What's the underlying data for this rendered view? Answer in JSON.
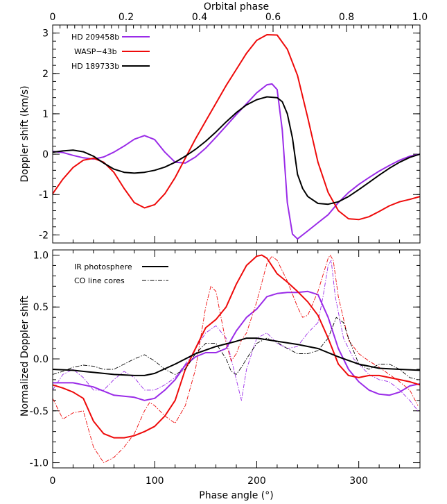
{
  "colors": {
    "hd209458b": "#9a2be8",
    "wasp43b": "#ee0a0a",
    "hd189733b": "#000000"
  },
  "chart_data": [
    {
      "type": "line",
      "top_axis": {
        "label": "Orbital phase",
        "ticks": [
          "0",
          "0.2",
          "0.4",
          "0.6",
          "0.8",
          "1.0"
        ]
      },
      "xlim": [
        0,
        360
      ],
      "ylabel": "Doppler shift (km/s)",
      "ylim": [
        -2.2,
        3.2
      ],
      "yticks": [
        "-2",
        "-1",
        "0",
        "1",
        "2",
        "3"
      ],
      "legend": {
        "placement": "top-left",
        "entries": [
          "HD 209458b",
          "WASP−43b",
          "HD 189733b"
        ]
      },
      "series": [
        {
          "name": "HD 209458b",
          "color": "#9a2be8",
          "style": "solid",
          "x": [
            0,
            10,
            20,
            30,
            40,
            50,
            60,
            70,
            80,
            90,
            100,
            110,
            120,
            130,
            140,
            150,
            160,
            170,
            180,
            190,
            200,
            210,
            215,
            220,
            225,
            230,
            235,
            240,
            245,
            250,
            260,
            270,
            280,
            290,
            300,
            310,
            320,
            330,
            340,
            350,
            360
          ],
          "y": [
            0.07,
            0.04,
            -0.03,
            -0.09,
            -0.12,
            -0.07,
            0.05,
            0.2,
            0.37,
            0.46,
            0.36,
            0.05,
            -0.2,
            -0.22,
            -0.07,
            0.15,
            0.42,
            0.7,
            0.98,
            1.25,
            1.52,
            1.72,
            1.74,
            1.6,
            0.6,
            -1.2,
            -1.98,
            -2.1,
            -2.0,
            -1.9,
            -1.7,
            -1.5,
            -1.2,
            -0.95,
            -0.75,
            -0.58,
            -0.42,
            -0.28,
            -0.15,
            -0.05,
            0.0
          ]
        },
        {
          "name": "WASP−43b",
          "color": "#ee0a0a",
          "style": "solid",
          "x": [
            0,
            10,
            20,
            30,
            40,
            50,
            60,
            70,
            80,
            90,
            100,
            110,
            120,
            130,
            140,
            150,
            160,
            170,
            180,
            190,
            200,
            210,
            220,
            230,
            240,
            250,
            260,
            270,
            280,
            290,
            300,
            310,
            320,
            330,
            340,
            350,
            360
          ],
          "y": [
            -0.98,
            -0.62,
            -0.33,
            -0.15,
            -0.1,
            -0.2,
            -0.45,
            -0.85,
            -1.2,
            -1.33,
            -1.25,
            -0.98,
            -0.58,
            -0.1,
            0.38,
            0.82,
            1.26,
            1.7,
            2.1,
            2.5,
            2.82,
            2.96,
            2.95,
            2.6,
            1.95,
            0.9,
            -0.2,
            -0.95,
            -1.4,
            -1.6,
            -1.62,
            -1.55,
            -1.42,
            -1.28,
            -1.18,
            -1.12,
            -1.05
          ]
        },
        {
          "name": "HD 189733b",
          "color": "#000000",
          "style": "solid",
          "x": [
            0,
            10,
            20,
            30,
            40,
            50,
            60,
            70,
            80,
            90,
            100,
            110,
            120,
            130,
            140,
            150,
            160,
            170,
            180,
            190,
            200,
            210,
            220,
            225,
            230,
            235,
            240,
            245,
            250,
            260,
            270,
            280,
            290,
            300,
            310,
            320,
            330,
            340,
            350,
            360
          ],
          "y": [
            0.05,
            0.08,
            0.1,
            0.06,
            -0.05,
            -0.22,
            -0.37,
            -0.45,
            -0.47,
            -0.45,
            -0.4,
            -0.32,
            -0.2,
            -0.05,
            0.12,
            0.32,
            0.55,
            0.8,
            1.03,
            1.22,
            1.35,
            1.42,
            1.4,
            1.3,
            1.0,
            0.4,
            -0.5,
            -0.85,
            -1.05,
            -1.22,
            -1.24,
            -1.18,
            -1.05,
            -0.88,
            -0.7,
            -0.52,
            -0.35,
            -0.2,
            -0.08,
            0.0
          ]
        }
      ]
    },
    {
      "type": "line",
      "xlabel": "Phase angle (°)",
      "xlim": [
        0,
        360
      ],
      "xticks": [
        "0",
        "100",
        "200",
        "300"
      ],
      "ylabel": "Normalized Doppler shift",
      "ylim": [
        -1.05,
        1.05
      ],
      "yticks": [
        "-1.0",
        "-0.5",
        "0.0",
        "0.5",
        "1.0"
      ],
      "legend": {
        "placement": "top-left",
        "entries": [
          "IR photosphere",
          "CO line cores"
        ]
      },
      "series": [
        {
          "name": "IR photosphere",
          "group": "HD 209458b",
          "color": "#9a2be8",
          "style": "solid",
          "x": [
            0,
            20,
            40,
            60,
            70,
            80,
            90,
            100,
            110,
            120,
            130,
            140,
            150,
            160,
            170,
            180,
            190,
            200,
            210,
            220,
            230,
            240,
            250,
            260,
            270,
            280,
            290,
            300,
            310,
            320,
            330,
            340,
            350,
            360
          ],
          "y": [
            -0.23,
            -0.23,
            -0.27,
            -0.35,
            -0.36,
            -0.37,
            -0.4,
            -0.38,
            -0.3,
            -0.2,
            -0.06,
            0.02,
            0.06,
            0.06,
            0.1,
            0.27,
            0.4,
            0.48,
            0.6,
            0.63,
            0.64,
            0.64,
            0.65,
            0.62,
            0.4,
            0.1,
            -0.1,
            -0.22,
            -0.3,
            -0.34,
            -0.35,
            -0.32,
            -0.26,
            -0.24
          ]
        },
        {
          "name": "CO line cores",
          "group": "HD 209458b",
          "color": "#9a2be8",
          "style": "dashdot",
          "x": [
            0,
            10,
            20,
            30,
            40,
            50,
            60,
            70,
            80,
            90,
            100,
            110,
            120,
            130,
            140,
            150,
            160,
            170,
            180,
            185,
            190,
            200,
            210,
            220,
            230,
            240,
            250,
            260,
            265,
            270,
            273,
            277,
            285,
            295,
            310,
            320,
            330,
            340,
            350,
            358
          ],
          "y": [
            -0.3,
            -0.15,
            -0.1,
            -0.18,
            -0.3,
            -0.3,
            -0.2,
            -0.12,
            -0.18,
            -0.3,
            -0.3,
            -0.25,
            -0.18,
            -0.05,
            0.1,
            0.25,
            0.32,
            0.2,
            -0.2,
            -0.4,
            -0.1,
            0.2,
            0.25,
            0.15,
            0.1,
            0.12,
            0.25,
            0.35,
            0.6,
            0.9,
            0.95,
            0.6,
            0.2,
            0.0,
            -0.15,
            -0.2,
            -0.22,
            -0.3,
            -0.4,
            -0.5
          ]
        },
        {
          "name": "IR photosphere",
          "group": "WASP−43b",
          "color": "#ee0a0a",
          "style": "solid",
          "x": [
            0,
            10,
            20,
            30,
            40,
            50,
            60,
            70,
            80,
            90,
            100,
            110,
            120,
            130,
            140,
            150,
            160,
            170,
            180,
            190,
            200,
            205,
            210,
            220,
            230,
            240,
            250,
            260,
            270,
            280,
            290,
            300,
            310,
            320,
            330,
            340,
            350,
            360
          ],
          "y": [
            -0.25,
            -0.28,
            -0.32,
            -0.38,
            -0.6,
            -0.72,
            -0.76,
            -0.76,
            -0.74,
            -0.7,
            -0.65,
            -0.55,
            -0.4,
            -0.1,
            0.1,
            0.3,
            0.38,
            0.5,
            0.72,
            0.9,
            0.99,
            1.0,
            0.97,
            0.82,
            0.74,
            0.65,
            0.55,
            0.42,
            0.2,
            -0.05,
            -0.16,
            -0.18,
            -0.16,
            -0.16,
            -0.18,
            -0.2,
            -0.22,
            -0.25
          ]
        },
        {
          "name": "CO line cores",
          "group": "WASP−43b",
          "color": "#ee0a0a",
          "style": "dashdot",
          "x": [
            0,
            10,
            20,
            30,
            40,
            50,
            60,
            70,
            80,
            90,
            95,
            100,
            110,
            120,
            130,
            140,
            150,
            155,
            160,
            165,
            170,
            175,
            180,
            185,
            190,
            200,
            210,
            215,
            220,
            230,
            240,
            245,
            250,
            260,
            270,
            272,
            275,
            280,
            290,
            300,
            310,
            320,
            330,
            340,
            350,
            358
          ],
          "y": [
            -0.38,
            -0.58,
            -0.52,
            -0.5,
            -0.85,
            -1.0,
            -0.95,
            -0.85,
            -0.72,
            -0.5,
            -0.42,
            -0.45,
            -0.55,
            -0.62,
            -0.45,
            -0.1,
            0.5,
            0.7,
            0.65,
            0.4,
            0.15,
            -0.02,
            0.05,
            0.18,
            0.25,
            0.55,
            0.92,
            0.99,
            0.95,
            0.75,
            0.5,
            0.4,
            0.42,
            0.65,
            0.97,
            1.0,
            0.95,
            0.6,
            0.18,
            0.05,
            -0.02,
            -0.08,
            -0.15,
            -0.22,
            -0.3,
            -0.45
          ]
        },
        {
          "name": "IR photosphere",
          "group": "HD 189733b",
          "color": "#000000",
          "style": "solid",
          "x": [
            0,
            20,
            40,
            60,
            80,
            90,
            100,
            120,
            140,
            160,
            180,
            190,
            200,
            220,
            240,
            260,
            280,
            300,
            320,
            340,
            360
          ],
          "y": [
            -0.1,
            -0.11,
            -0.13,
            -0.15,
            -0.16,
            -0.16,
            -0.14,
            -0.05,
            0.05,
            0.12,
            0.17,
            0.2,
            0.2,
            0.17,
            0.14,
            0.1,
            0.02,
            -0.05,
            -0.09,
            -0.1,
            -0.11
          ]
        },
        {
          "name": "CO line cores",
          "group": "HD 189733b",
          "color": "#000000",
          "style": "dashdot",
          "x": [
            0,
            10,
            20,
            30,
            40,
            50,
            60,
            70,
            80,
            90,
            100,
            110,
            120,
            130,
            140,
            150,
            160,
            170,
            175,
            180,
            185,
            190,
            200,
            210,
            220,
            230,
            240,
            250,
            260,
            270,
            278,
            285,
            290,
            300,
            310,
            320,
            330,
            340,
            350,
            358
          ],
          "y": [
            -0.15,
            -0.12,
            -0.08,
            -0.06,
            -0.07,
            -0.1,
            -0.1,
            -0.05,
            0.0,
            0.04,
            -0.02,
            -0.1,
            -0.15,
            -0.1,
            0.05,
            0.15,
            0.15,
            0.0,
            -0.12,
            -0.15,
            -0.08,
            0.0,
            0.15,
            0.2,
            0.16,
            0.1,
            0.05,
            0.05,
            0.08,
            0.2,
            0.4,
            0.35,
            0.2,
            -0.05,
            -0.1,
            -0.05,
            -0.05,
            -0.1,
            -0.18,
            -0.2
          ]
        }
      ]
    }
  ]
}
